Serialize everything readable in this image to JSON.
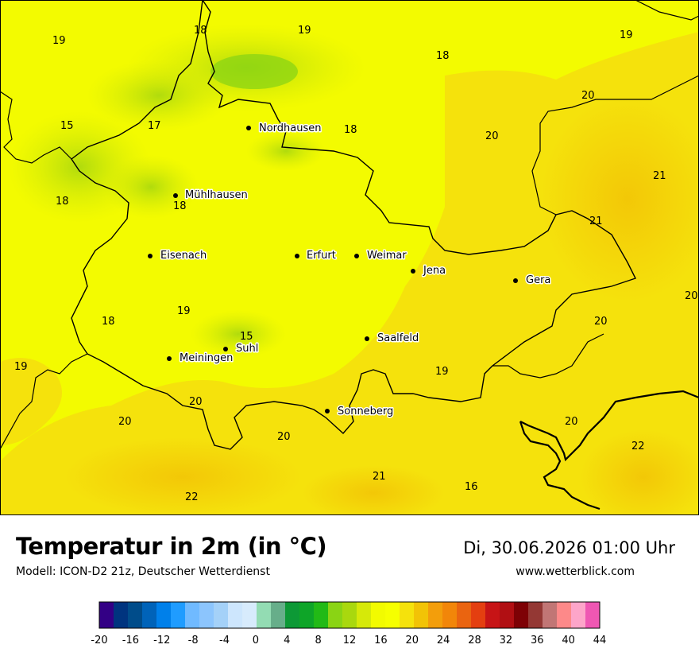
{
  "header": {
    "title": "Temperatur in 2m (in °C)",
    "model": "Modell: ICON-D2 21z, Deutscher Wetterdienst",
    "datetime": "Di, 30.06.2026 01:00 Uhr",
    "website": "www.wetterblick.com"
  },
  "cities": [
    "Nordhausen",
    "Mühlhausen",
    "Eisenach",
    "Erfurt",
    "Weimar",
    "Jena",
    "Gera",
    "Saalfeld",
    "Suhl",
    "Meiningen",
    "Sonneberg"
  ],
  "temperature_labels": [
    "19",
    "18",
    "19",
    "18",
    "19",
    "15",
    "17",
    "18",
    "18",
    "20",
    "20",
    "18",
    "21",
    "21",
    "20",
    "19",
    "18",
    "19",
    "15",
    "20",
    "20",
    "19",
    "20",
    "20",
    "20",
    "22",
    "21",
    "16",
    "22"
  ],
  "legend": {
    "colors": [
      "#330085",
      "#00347f",
      "#004c8a",
      "#0063b9",
      "#0080ea",
      "#1f9cff",
      "#70baff",
      "#8cc5fd",
      "#a4d1f8",
      "#cde6fd",
      "#d7ebfc",
      "#93dcb3",
      "#67ae8a",
      "#0d9936",
      "#0ea528",
      "#22ba16",
      "#8ad414",
      "#a9d80e",
      "#d6e909",
      "#f2fb00",
      "#f6ff00",
      "#f5e20c",
      "#f2c306",
      "#f39e0b",
      "#f28609",
      "#ea6410",
      "#e43f10",
      "#c71416",
      "#b10f13",
      "#7e0105",
      "#943834",
      "#c17675",
      "#fd8989",
      "#fda5c9",
      "#ef57b3"
    ],
    "ticks": [
      "-20",
      "-16",
      "-12",
      "-8",
      "-4",
      "0",
      "4",
      "8",
      "12",
      "16",
      "20",
      "24",
      "28",
      "32",
      "36",
      "40",
      "44"
    ]
  }
}
